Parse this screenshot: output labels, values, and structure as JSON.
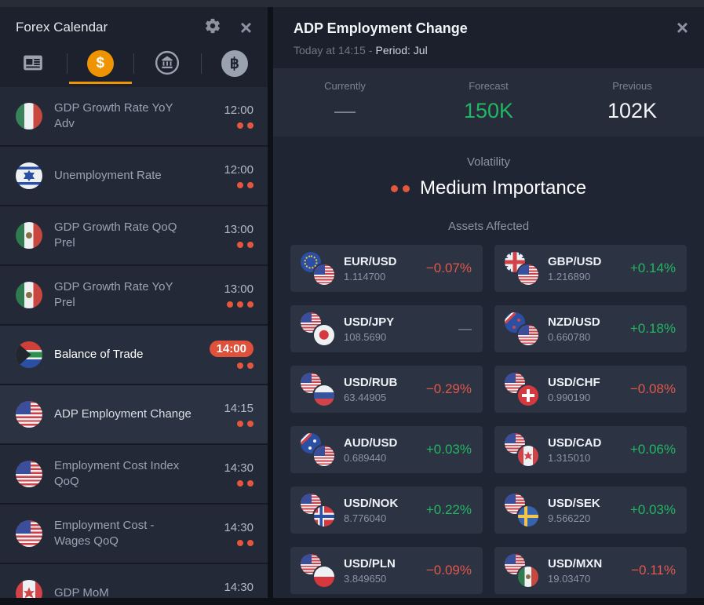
{
  "glyphs": {
    "close": "×",
    "dollar": "$",
    "bitcoin": "฿"
  },
  "colors": {
    "accent_orange": "#ef9400",
    "positive_green": "#22b663",
    "negative_red": "#e2574d",
    "importance_dot": "#e4573f",
    "time_badge": "#e0503a"
  },
  "left_panel": {
    "title": "Forex Calendar",
    "tabs": [
      {
        "id": "news",
        "icon": "news-icon",
        "active": false
      },
      {
        "id": "currencies",
        "icon": "dollar-icon",
        "active": true
      },
      {
        "id": "central-banks",
        "icon": "bank-icon",
        "active": false
      },
      {
        "id": "crypto",
        "icon": "bitcoin-icon",
        "active": false
      }
    ],
    "events": [
      {
        "flag": "italy",
        "title": "GDP Growth Rate YoY Adv",
        "time": "12:00",
        "importance": 2,
        "time_badge": false,
        "highlight": false,
        "selected": false
      },
      {
        "flag": "israel",
        "title": "Unemployment Rate",
        "time": "12:00",
        "importance": 2,
        "time_badge": false,
        "highlight": false,
        "selected": false
      },
      {
        "flag": "mexico",
        "title": "GDP Growth Rate QoQ Prel",
        "time": "13:00",
        "importance": 2,
        "time_badge": false,
        "highlight": false,
        "selected": false
      },
      {
        "flag": "mexico",
        "title": "GDP Growth Rate YoY Prel",
        "time": "13:00",
        "importance": 3,
        "time_badge": false,
        "highlight": false,
        "selected": false
      },
      {
        "flag": "south-africa",
        "title": "Balance of Trade",
        "time": "14:00",
        "importance": 2,
        "time_badge": true,
        "highlight": true,
        "selected": false
      },
      {
        "flag": "usa",
        "title": "ADP Employment Change",
        "time": "14:15",
        "importance": 2,
        "time_badge": false,
        "highlight": false,
        "selected": true
      },
      {
        "flag": "usa",
        "title": "Employment Cost Index QoQ",
        "time": "14:30",
        "importance": 2,
        "time_badge": false,
        "highlight": false,
        "selected": false
      },
      {
        "flag": "usa",
        "title": "Employment Cost - Wages QoQ",
        "time": "14:30",
        "importance": 2,
        "time_badge": false,
        "highlight": false,
        "selected": false
      },
      {
        "flag": "canada",
        "title": "GDP MoM",
        "time": "14:30",
        "importance": 2,
        "time_badge": false,
        "highlight": false,
        "selected": false
      }
    ]
  },
  "detail_panel": {
    "title": "ADP Employment Change",
    "subtitle": {
      "time": "Today at 14:15",
      "separator": "-",
      "period": "Period: Jul"
    },
    "stats": [
      {
        "label": "Currently",
        "value": "—",
        "tone": "muted"
      },
      {
        "label": "Forecast",
        "value": "150K",
        "tone": "green"
      },
      {
        "label": "Previous",
        "value": "102K",
        "tone": "white"
      }
    ],
    "volatility_label": "Volatility",
    "volatility_dots": 2,
    "volatility_value": "Medium Importance",
    "assets_label": "Assets Affected",
    "assets": [
      {
        "flags": [
          "eu",
          "usa"
        ],
        "name": "EUR/USD",
        "price": "1.114700",
        "change": "−0.07%",
        "dir": "down"
      },
      {
        "flags": [
          "uk",
          "usa"
        ],
        "name": "GBP/USD",
        "price": "1.216890",
        "change": "+0.14%",
        "dir": "up"
      },
      {
        "flags": [
          "usa",
          "japan"
        ],
        "name": "USD/JPY",
        "price": "108.5690",
        "change": "—",
        "dir": "flat"
      },
      {
        "flags": [
          "nz",
          "usa"
        ],
        "name": "NZD/USD",
        "price": "0.660780",
        "change": "+0.18%",
        "dir": "up"
      },
      {
        "flags": [
          "usa",
          "russia"
        ],
        "name": "USD/RUB",
        "price": "63.44905",
        "change": "−0.29%",
        "dir": "down"
      },
      {
        "flags": [
          "usa",
          "switzerland"
        ],
        "name": "USD/CHF",
        "price": "0.990190",
        "change": "−0.08%",
        "dir": "down"
      },
      {
        "flags": [
          "australia",
          "usa"
        ],
        "name": "AUD/USD",
        "price": "0.689440",
        "change": "+0.03%",
        "dir": "up"
      },
      {
        "flags": [
          "usa",
          "canada"
        ],
        "name": "USD/CAD",
        "price": "1.315010",
        "change": "+0.06%",
        "dir": "up"
      },
      {
        "flags": [
          "usa",
          "norway"
        ],
        "name": "USD/NOK",
        "price": "8.776040",
        "change": "+0.22%",
        "dir": "up"
      },
      {
        "flags": [
          "usa",
          "sweden"
        ],
        "name": "USD/SEK",
        "price": "9.566220",
        "change": "+0.03%",
        "dir": "up"
      },
      {
        "flags": [
          "usa",
          "poland"
        ],
        "name": "USD/PLN",
        "price": "3.849650",
        "change": "−0.09%",
        "dir": "down"
      },
      {
        "flags": [
          "usa",
          "mexico"
        ],
        "name": "USD/MXN",
        "price": "19.03470",
        "change": "−0.11%",
        "dir": "down"
      }
    ]
  }
}
